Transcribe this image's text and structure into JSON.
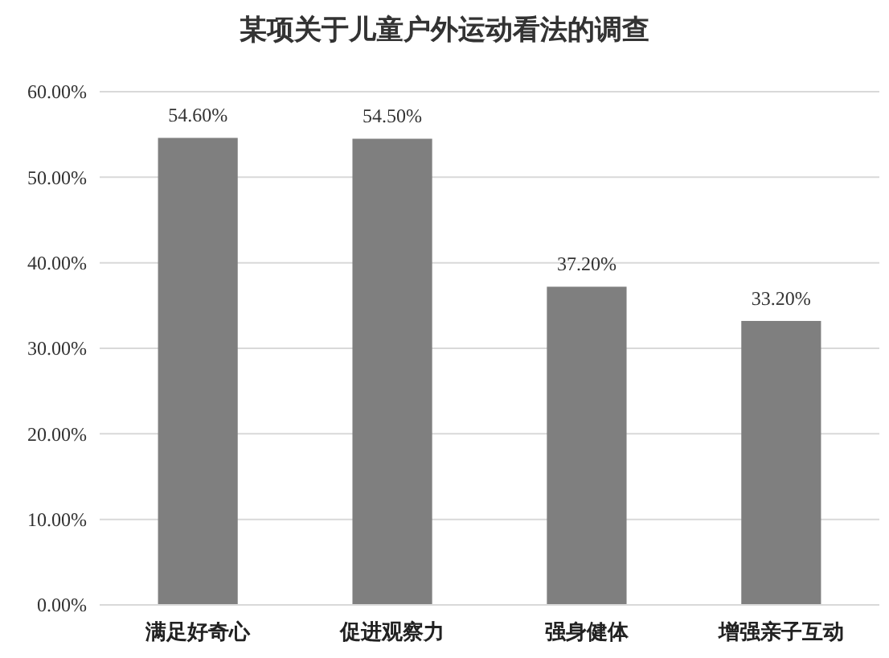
{
  "chart_data": {
    "type": "bar",
    "title": "某项关于儿童户外运动看法的调查",
    "categories": [
      "满足好奇心",
      "促进观察力",
      "强身健体",
      "增强亲子互动"
    ],
    "values": [
      54.6,
      54.5,
      37.2,
      33.2
    ],
    "color": "#7f7f7f",
    "value_labels": [
      "54.60%",
      "54.50%",
      "37.20%",
      "33.20%"
    ],
    "ylim": [
      0,
      60
    ],
    "yticks": [
      {
        "value": 0,
        "label": "0.00%"
      },
      {
        "value": 10,
        "label": "10.00%"
      },
      {
        "value": 20,
        "label": "20.00%"
      },
      {
        "value": 30,
        "label": "30.00%"
      },
      {
        "value": 40,
        "label": "40.00%"
      },
      {
        "value": 50,
        "label": "50.00%"
      },
      {
        "value": 60,
        "label": "60.00%"
      }
    ],
    "grid": "y"
  }
}
